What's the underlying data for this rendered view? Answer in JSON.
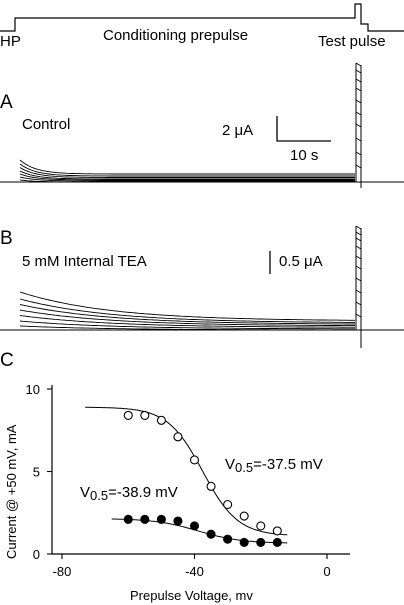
{
  "protocol": {
    "hp_label": "HP",
    "prepulse_label": "Conditioning prepulse",
    "test_label": "Test pulse"
  },
  "panel_a": {
    "letter": "A",
    "label": "Control",
    "scale_current": "2 μA",
    "scale_time": "10 s"
  },
  "panel_b": {
    "letter": "B",
    "label": "5 mM Internal TEA",
    "scale_current": "0.5 μA"
  },
  "panel_c": {
    "letter": "C"
  },
  "colors": {
    "ink": "#000000",
    "open_marker_fill": "#ffffff",
    "filled_marker_fill": "#000000"
  },
  "chart_data": {
    "type": "scatter",
    "xlabel": "Prepulse Voltage, mv",
    "ylabel": "Current @ +50 mV, mA",
    "xlim": [
      -80,
      0
    ],
    "ylim": [
      0,
      10
    ],
    "xticks": [
      "-80",
      "-40",
      "0"
    ],
    "yticks": [
      "0",
      "5",
      "10"
    ],
    "series": [
      {
        "marker": "open-circle",
        "annotation_text": "=-37.5 mV",
        "annotation_v": "V",
        "annotation_sub": "0.5",
        "fit": {
          "top": 8.9,
          "bottom": 1.1,
          "v_half": -37.5,
          "slope": 5.3,
          "x_start": -73,
          "x_end": -12
        },
        "x": [
          -60,
          -55,
          -50,
          -45,
          -40,
          -35,
          -30,
          -25,
          -20,
          -15
        ],
        "y": [
          8.4,
          8.4,
          8.1,
          7.1,
          5.7,
          4.1,
          3.0,
          2.3,
          1.7,
          1.4
        ]
      },
      {
        "marker": "filled-circle",
        "annotation_text": "=-38.9 mV",
        "annotation_v": "V",
        "annotation_sub": "0.5",
        "fit": {
          "top": 2.15,
          "bottom": 0.65,
          "v_half": -38.9,
          "slope": 6.5,
          "x_start": -65,
          "x_end": -12
        },
        "x": [
          -60,
          -55,
          -50,
          -45,
          -40,
          -35,
          -30,
          -25,
          -20,
          -15
        ],
        "y": [
          2.1,
          2.1,
          2.1,
          2.0,
          1.7,
          1.2,
          0.9,
          0.7,
          0.7,
          0.7
        ]
      }
    ]
  }
}
